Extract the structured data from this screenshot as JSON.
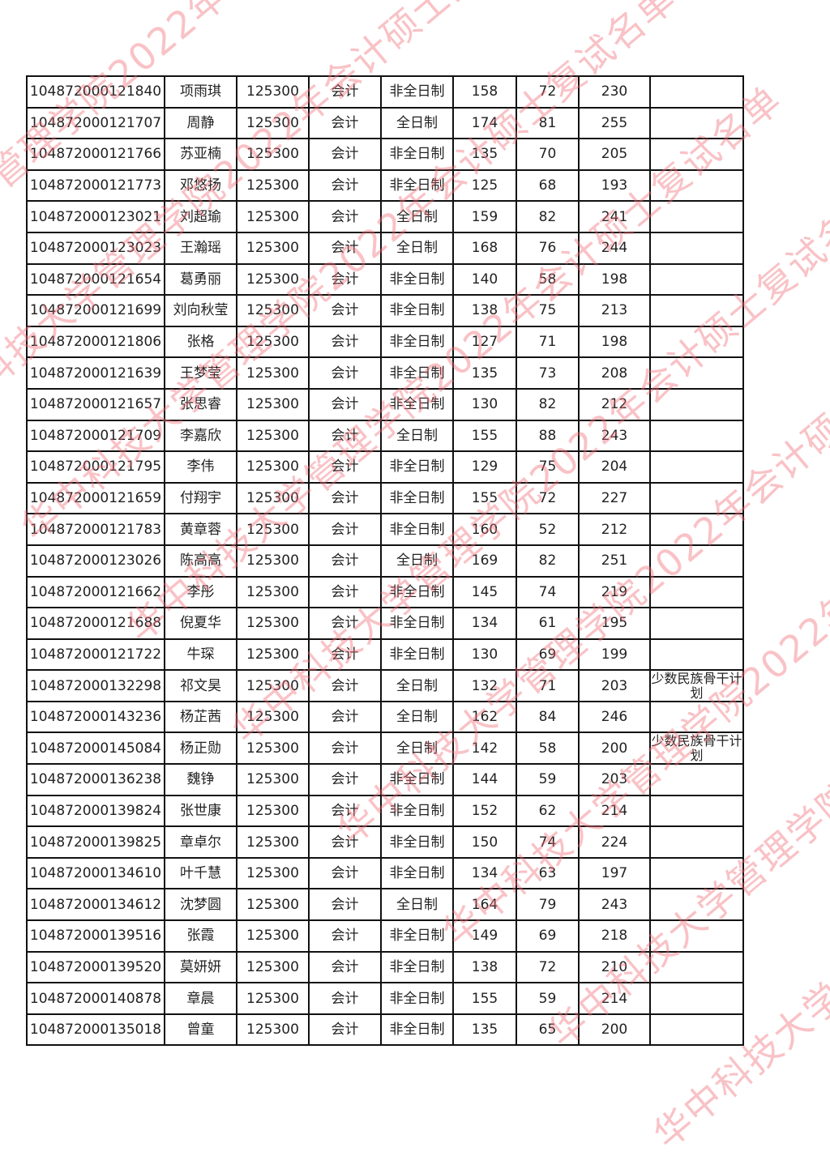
{
  "watermark": "华中科技大学管理学院2022年会计硕士复试名单",
  "rows": [
    {
      "id": "104872000121840",
      "name": "项雨琪",
      "code": "125300",
      "major": "会计",
      "mode": "非全日制",
      "s1": "158",
      "s2": "72",
      "total": "230",
      "note": ""
    },
    {
      "id": "104872000121707",
      "name": "周静",
      "code": "125300",
      "major": "会计",
      "mode": "全日制",
      "s1": "174",
      "s2": "81",
      "total": "255",
      "note": ""
    },
    {
      "id": "104872000121766",
      "name": "苏亚楠",
      "code": "125300",
      "major": "会计",
      "mode": "非全日制",
      "s1": "135",
      "s2": "70",
      "total": "205",
      "note": ""
    },
    {
      "id": "104872000121773",
      "name": "邓悠扬",
      "code": "125300",
      "major": "会计",
      "mode": "非全日制",
      "s1": "125",
      "s2": "68",
      "total": "193",
      "note": ""
    },
    {
      "id": "104872000123021",
      "name": "刘超瑜",
      "code": "125300",
      "major": "会计",
      "mode": "全日制",
      "s1": "159",
      "s2": "82",
      "total": "241",
      "note": ""
    },
    {
      "id": "104872000123023",
      "name": "王瀚瑶",
      "code": "125300",
      "major": "会计",
      "mode": "全日制",
      "s1": "168",
      "s2": "76",
      "total": "244",
      "note": ""
    },
    {
      "id": "104872000121654",
      "name": "葛勇丽",
      "code": "125300",
      "major": "会计",
      "mode": "非全日制",
      "s1": "140",
      "s2": "58",
      "total": "198",
      "note": ""
    },
    {
      "id": "104872000121699",
      "name": "刘向秋莹",
      "code": "125300",
      "major": "会计",
      "mode": "非全日制",
      "s1": "138",
      "s2": "75",
      "total": "213",
      "note": ""
    },
    {
      "id": "104872000121806",
      "name": "张格",
      "code": "125300",
      "major": "会计",
      "mode": "非全日制",
      "s1": "127",
      "s2": "71",
      "total": "198",
      "note": ""
    },
    {
      "id": "104872000121639",
      "name": "王梦莹",
      "code": "125300",
      "major": "会计",
      "mode": "非全日制",
      "s1": "135",
      "s2": "73",
      "total": "208",
      "note": ""
    },
    {
      "id": "104872000121657",
      "name": "张思睿",
      "code": "125300",
      "major": "会计",
      "mode": "非全日制",
      "s1": "130",
      "s2": "82",
      "total": "212",
      "note": ""
    },
    {
      "id": "104872000121709",
      "name": "李嘉欣",
      "code": "125300",
      "major": "会计",
      "mode": "全日制",
      "s1": "155",
      "s2": "88",
      "total": "243",
      "note": ""
    },
    {
      "id": "104872000121795",
      "name": "李伟",
      "code": "125300",
      "major": "会计",
      "mode": "非全日制",
      "s1": "129",
      "s2": "75",
      "total": "204",
      "note": ""
    },
    {
      "id": "104872000121659",
      "name": "付翔宇",
      "code": "125300",
      "major": "会计",
      "mode": "非全日制",
      "s1": "155",
      "s2": "72",
      "total": "227",
      "note": ""
    },
    {
      "id": "104872000121783",
      "name": "黄章蓉",
      "code": "125300",
      "major": "会计",
      "mode": "非全日制",
      "s1": "160",
      "s2": "52",
      "total": "212",
      "note": ""
    },
    {
      "id": "104872000123026",
      "name": "陈高高",
      "code": "125300",
      "major": "会计",
      "mode": "全日制",
      "s1": "169",
      "s2": "82",
      "total": "251",
      "note": ""
    },
    {
      "id": "104872000121662",
      "name": "李彤",
      "code": "125300",
      "major": "会计",
      "mode": "非全日制",
      "s1": "145",
      "s2": "74",
      "total": "219",
      "note": ""
    },
    {
      "id": "104872000121688",
      "name": "倪夏华",
      "code": "125300",
      "major": "会计",
      "mode": "非全日制",
      "s1": "134",
      "s2": "61",
      "total": "195",
      "note": ""
    },
    {
      "id": "104872000121722",
      "name": "牛琛",
      "code": "125300",
      "major": "会计",
      "mode": "非全日制",
      "s1": "130",
      "s2": "69",
      "total": "199",
      "note": ""
    },
    {
      "id": "104872000132298",
      "name": "祁文昊",
      "code": "125300",
      "major": "会计",
      "mode": "全日制",
      "s1": "132",
      "s2": "71",
      "total": "203",
      "note": "少数民族骨干计划"
    },
    {
      "id": "104872000143236",
      "name": "杨芷茜",
      "code": "125300",
      "major": "会计",
      "mode": "全日制",
      "s1": "162",
      "s2": "84",
      "total": "246",
      "note": ""
    },
    {
      "id": "104872000145084",
      "name": "杨正勋",
      "code": "125300",
      "major": "会计",
      "mode": "全日制",
      "s1": "142",
      "s2": "58",
      "total": "200",
      "note": "少数民族骨干计划"
    },
    {
      "id": "104872000136238",
      "name": "魏铮",
      "code": "125300",
      "major": "会计",
      "mode": "非全日制",
      "s1": "144",
      "s2": "59",
      "total": "203",
      "note": ""
    },
    {
      "id": "104872000139824",
      "name": "张世康",
      "code": "125300",
      "major": "会计",
      "mode": "非全日制",
      "s1": "152",
      "s2": "62",
      "total": "214",
      "note": ""
    },
    {
      "id": "104872000139825",
      "name": "章卓尔",
      "code": "125300",
      "major": "会计",
      "mode": "非全日制",
      "s1": "150",
      "s2": "74",
      "total": "224",
      "note": ""
    },
    {
      "id": "104872000134610",
      "name": "叶千慧",
      "code": "125300",
      "major": "会计",
      "mode": "非全日制",
      "s1": "134",
      "s2": "63",
      "total": "197",
      "note": ""
    },
    {
      "id": "104872000134612",
      "name": "沈梦圆",
      "code": "125300",
      "major": "会计",
      "mode": "全日制",
      "s1": "164",
      "s2": "79",
      "total": "243",
      "note": ""
    },
    {
      "id": "104872000139516",
      "name": "张霞",
      "code": "125300",
      "major": "会计",
      "mode": "非全日制",
      "s1": "149",
      "s2": "69",
      "total": "218",
      "note": ""
    },
    {
      "id": "104872000139520",
      "name": "莫妍妍",
      "code": "125300",
      "major": "会计",
      "mode": "非全日制",
      "s1": "138",
      "s2": "72",
      "total": "210",
      "note": ""
    },
    {
      "id": "104872000140878",
      "name": "章晨",
      "code": "125300",
      "major": "会计",
      "mode": "非全日制",
      "s1": "155",
      "s2": "59",
      "total": "214",
      "note": ""
    },
    {
      "id": "104872000135018",
      "name": "曾童",
      "code": "125300",
      "major": "会计",
      "mode": "非全日制",
      "s1": "135",
      "s2": "65",
      "total": "200",
      "note": ""
    }
  ]
}
